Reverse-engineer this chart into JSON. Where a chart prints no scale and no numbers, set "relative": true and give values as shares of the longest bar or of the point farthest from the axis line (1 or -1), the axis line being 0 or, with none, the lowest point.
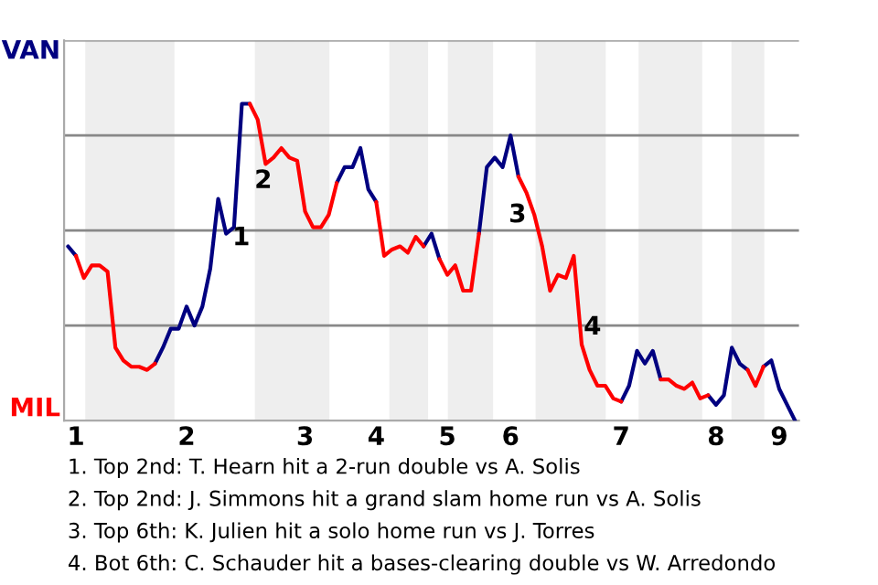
{
  "chart_data": {
    "type": "line",
    "relative": true,
    "tick_labels": "x",
    "categories": [
      null,
      "1",
      null,
      null,
      null,
      null,
      null,
      null,
      null,
      null,
      null,
      null,
      null,
      null,
      null,
      "2",
      null,
      null,
      null,
      null,
      null,
      null,
      null,
      null,
      null,
      null,
      null,
      null,
      null,
      null,
      "3",
      null,
      null,
      null,
      null,
      null,
      null,
      null,
      null,
      "4",
      null,
      null,
      null,
      null,
      null,
      null,
      null,
      null,
      "5",
      null,
      null,
      null,
      null,
      null,
      null,
      null,
      "6",
      null,
      null,
      null,
      null,
      null,
      null,
      null,
      null,
      null,
      null,
      null,
      null,
      null,
      "7",
      null,
      null,
      null,
      null,
      null,
      null,
      null,
      null,
      null,
      null,
      null,
      "8",
      null,
      null,
      null,
      null,
      null,
      null,
      null,
      "9",
      null,
      null
    ],
    "series": [
      {
        "color": "#000080",
        "values": [
          0.55,
          0.52,
          null,
          null,
          null,
          null,
          null,
          null,
          null,
          null,
          null,
          0.18,
          0.23,
          0.29,
          0.29,
          0.36,
          0.3,
          0.36,
          0.48,
          0.7,
          0.59,
          0.61,
          1,
          1,
          null,
          null,
          null,
          null,
          null,
          null,
          null,
          null,
          null,
          null,
          0.75,
          0.8,
          0.8,
          0.86,
          0.73,
          0.69,
          null,
          null,
          null,
          null,
          null,
          0.55,
          0.59,
          0.51,
          null,
          null,
          null,
          null,
          0.59,
          0.8,
          0.83,
          0.8,
          0.9,
          0.77,
          null,
          null,
          null,
          null,
          null,
          null,
          null,
          null,
          null,
          null,
          null,
          null,
          0.06,
          0.11,
          0.22,
          0.18,
          0.22,
          0.13,
          null,
          null,
          null,
          null,
          null,
          0.08,
          0.05,
          0.08,
          0.23,
          0.18,
          0.16,
          null,
          0.17,
          0.19,
          0.1,
          0.05,
          0
        ]
      },
      {
        "color": "#ff0000",
        "values": [
          null,
          0.52,
          0.45,
          0.49,
          0.49,
          0.47,
          0.23,
          0.19,
          0.17,
          0.17,
          0.16,
          0.18,
          null,
          null,
          null,
          null,
          null,
          null,
          null,
          null,
          null,
          null,
          null,
          1,
          0.95,
          0.81,
          0.83,
          0.86,
          0.83,
          0.82,
          0.66,
          0.61,
          0.61,
          0.65,
          0.75,
          null,
          null,
          null,
          null,
          0.69,
          0.52,
          0.54,
          0.55,
          0.53,
          0.58,
          0.55,
          null,
          0.51,
          0.46,
          0.49,
          0.41,
          0.41,
          0.59,
          null,
          null,
          null,
          null,
          0.77,
          0.72,
          0.65,
          0.55,
          0.41,
          0.46,
          0.45,
          0.52,
          0.24,
          0.16,
          0.11,
          0.11,
          0.07,
          0.06,
          null,
          null,
          null,
          null,
          0.13,
          0.13,
          0.11,
          0.1,
          0.12,
          0.07,
          0.08,
          null,
          null,
          null,
          null,
          0.16,
          0.11,
          0.17,
          null,
          null,
          null,
          null
        ]
      }
    ],
    "grid": "y",
    "annotations": [
      "VAN",
      "MIL",
      "1",
      "2",
      "3",
      "4",
      "1. Top 2nd: T. Hearn hit a 2-run double vs A. Solis",
      "2. Top 2nd: J. Simmons hit a grand slam home run vs A. Solis",
      "3. Top 6th: K. Julien hit a solo home run vs J. Torres",
      "4. Bot 6th: C. Schauder hit a bases-clearing double vs W. Arredondo"
    ]
  }
}
